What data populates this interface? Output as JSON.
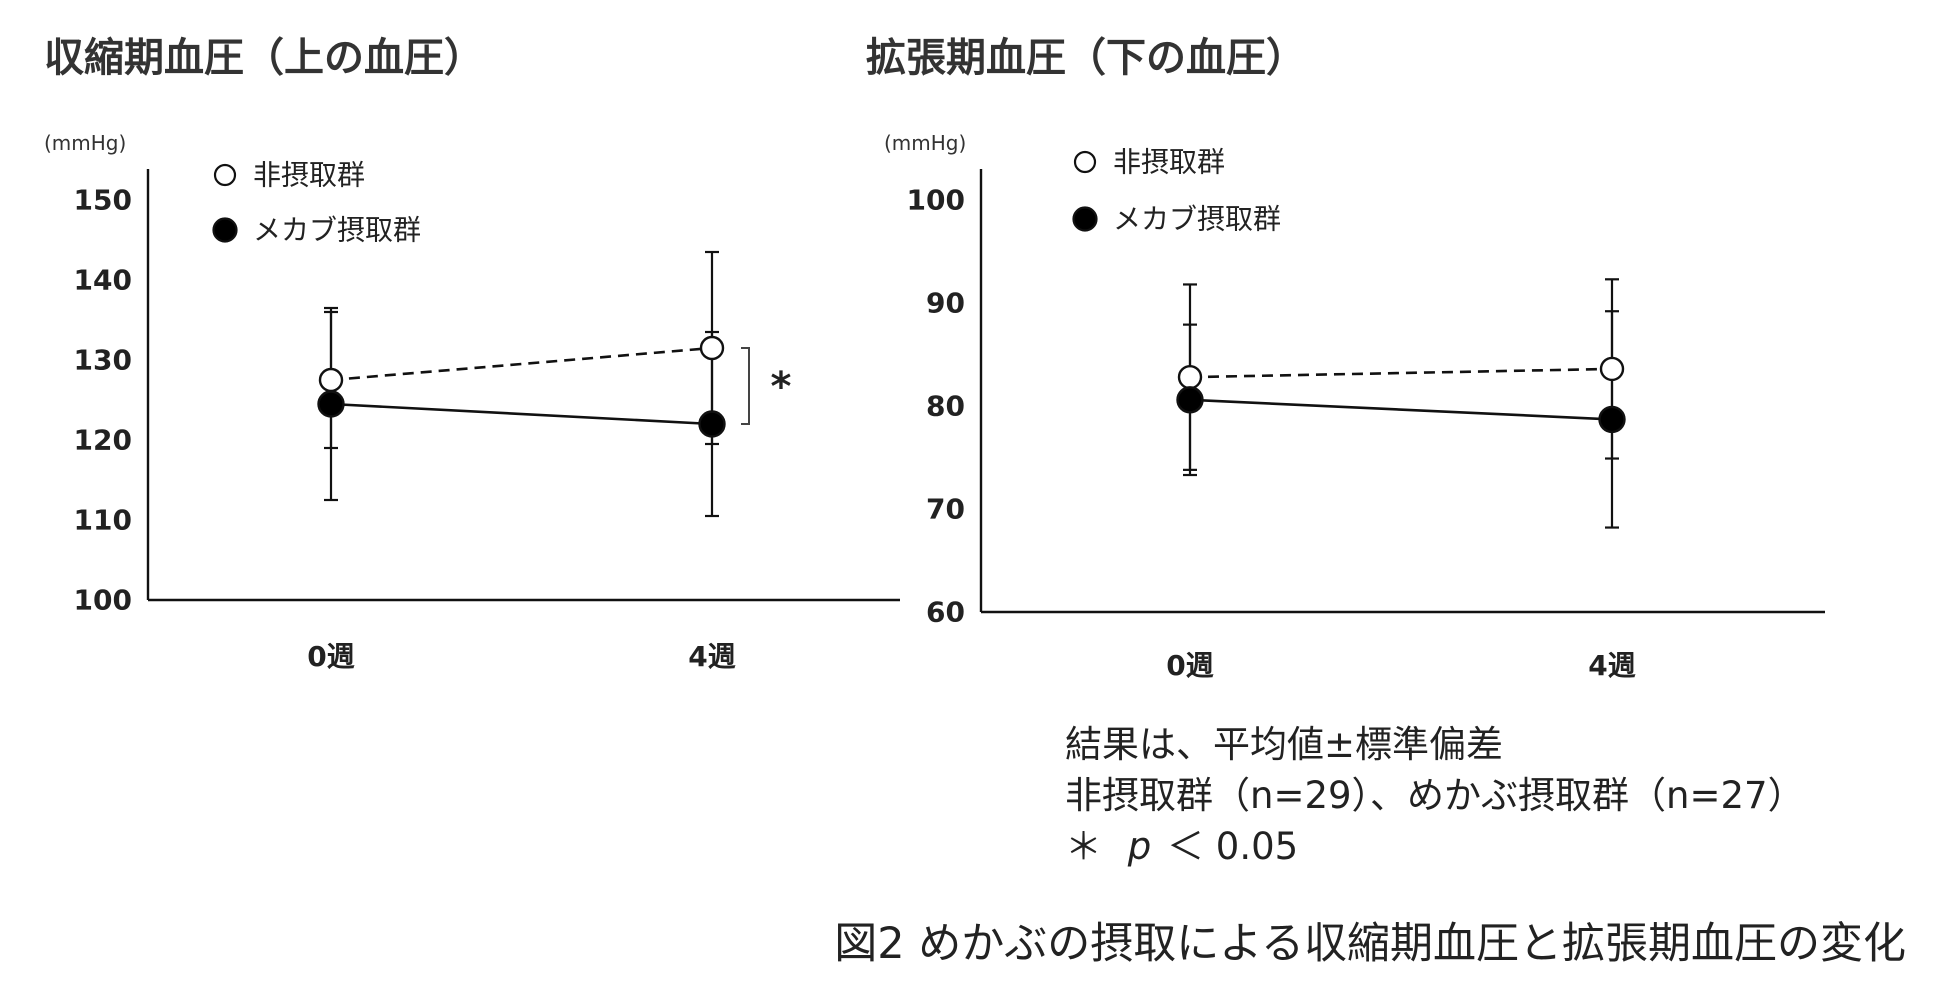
{
  "chart_data": [
    {
      "type": "line",
      "title": "収縮期血圧（上の血圧）",
      "ylabel": "(mmHg)",
      "xlabel": "",
      "categories": [
        "0週",
        "4週"
      ],
      "ylim": [
        100,
        150
      ],
      "yticks": [
        100,
        110,
        120,
        130,
        140,
        150
      ],
      "grid": false,
      "legend_position": "top-left",
      "series": [
        {
          "name": "非摂取群",
          "marker": "open-circle",
          "line_style": "dashed",
          "values": [
            127.5,
            131.5
          ],
          "sd": [
            8.5,
            12.0
          ]
        },
        {
          "name": "メカブ摂取群",
          "marker": "filled-circle",
          "line_style": "solid",
          "values": [
            124.5,
            122.0
          ],
          "sd": [
            12.0,
            11.5
          ]
        }
      ],
      "significance": {
        "category": "4週",
        "label": "*"
      }
    },
    {
      "type": "line",
      "title": "拡張期血圧（下の血圧）",
      "ylabel": "(mmHg)",
      "xlabel": "",
      "categories": [
        "0週",
        "4週"
      ],
      "ylim": [
        60,
        100
      ],
      "yticks": [
        60,
        70,
        80,
        90,
        100
      ],
      "grid": false,
      "legend_position": "top-left",
      "series": [
        {
          "name": "非摂取群",
          "marker": "open-circle",
          "line_style": "dashed",
          "values": [
            82.8,
            83.6
          ],
          "sd": [
            9.0,
            8.7
          ]
        },
        {
          "name": "メカブ摂取群",
          "marker": "filled-circle",
          "line_style": "solid",
          "values": [
            80.6,
            78.7
          ],
          "sd": [
            7.3,
            10.5
          ]
        }
      ]
    }
  ],
  "notes": {
    "line1": "結果は、平均値±標準偏差",
    "line2": "非摂取群（n=29）、めかぶ摂取群（n=27）",
    "line3_asterisk": "＊",
    "line3_p": "p",
    "line3_rest": "＜ 0.05"
  },
  "caption": "図2 めかぶの摂取による収縮期血圧と拡張期血圧の変化"
}
